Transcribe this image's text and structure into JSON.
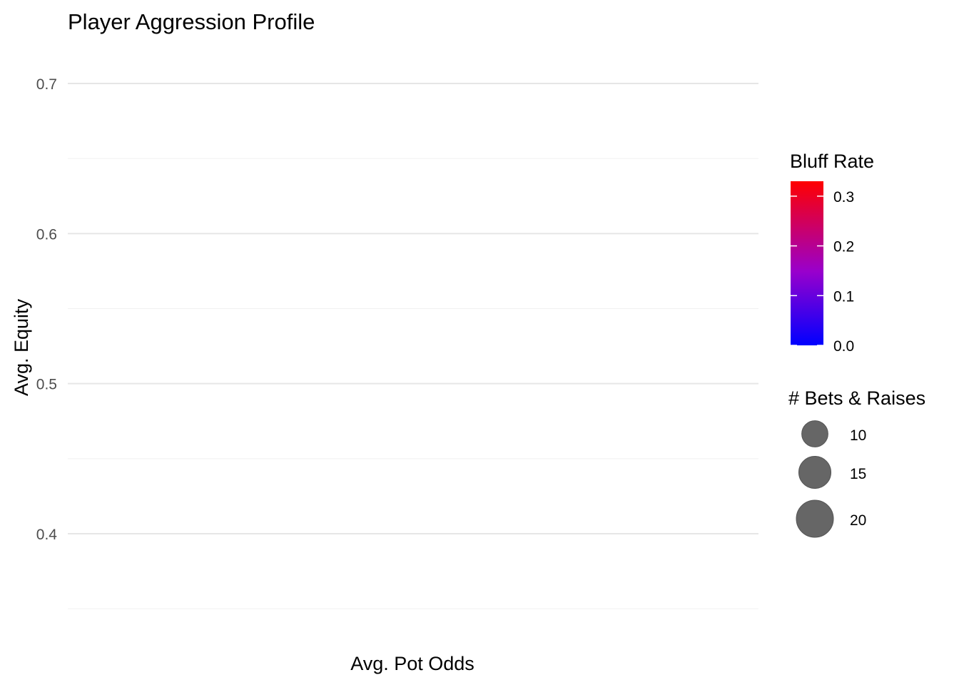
{
  "chart_data": {
    "type": "scatter",
    "title": "Player Aggression Profile",
    "xlabel": "Avg. Pot Odds",
    "ylabel": "Avg. Equity",
    "ylim": [
      0.35,
      0.72
    ],
    "y_ticks": [
      0.4,
      0.5,
      0.6,
      0.7
    ],
    "y_tick_labels": [
      "0.4",
      "0.5",
      "0.6",
      "0.7"
    ],
    "y_minor_ticks": [
      0.35,
      0.45,
      0.55,
      0.65
    ],
    "x_ticks": [],
    "grid": true,
    "points": [],
    "color_legend": {
      "title": "Bluff Rate",
      "range": [
        0.0,
        0.33
      ],
      "ticks": [
        0.0,
        0.1,
        0.2,
        0.3
      ],
      "tick_labels": [
        "0.0",
        "0.1",
        "0.2",
        "0.3"
      ],
      "low_color": "#0000FF",
      "high_color": "#FF0000"
    },
    "size_legend": {
      "title": "# Bets & Raises",
      "values": [
        10,
        15,
        20
      ],
      "labels": [
        "10",
        "15",
        "20"
      ],
      "fill_color": "#666666"
    },
    "legend_position": "right"
  }
}
